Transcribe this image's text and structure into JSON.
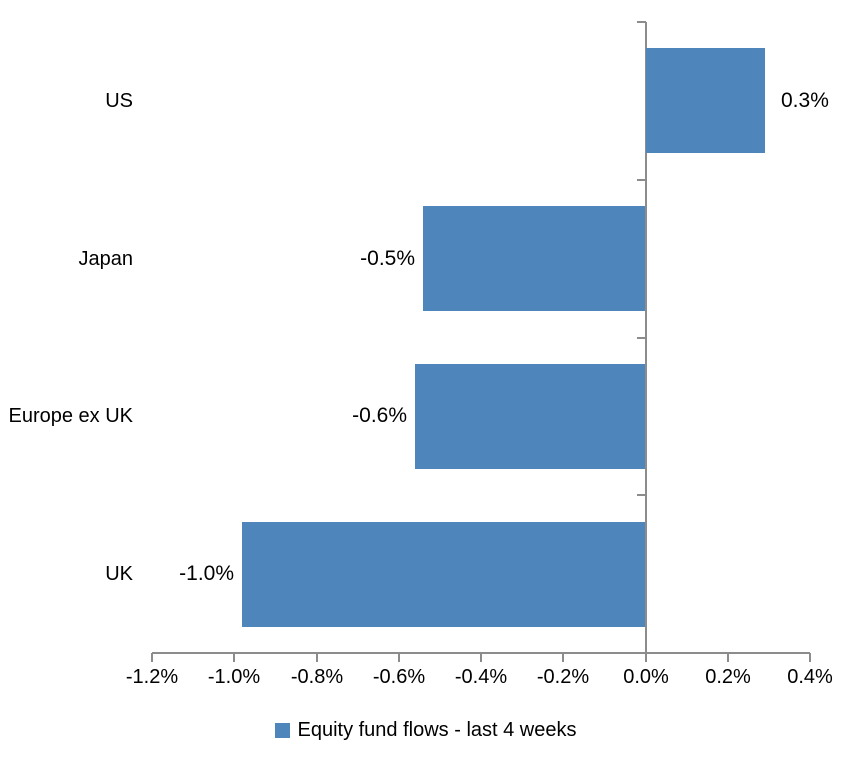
{
  "chart_data": {
    "type": "bar",
    "orientation": "horizontal",
    "title": "",
    "categories": [
      "US",
      "Japan",
      "Europe ex UK",
      "UK"
    ],
    "values": [
      0.29,
      -0.54,
      -0.56,
      -0.98
    ],
    "data_labels": [
      "0.3%",
      "-0.5%",
      "-0.6%",
      "-1.0%"
    ],
    "series_name": "Equity fund flows - last 4 weeks",
    "x_tick_labels": [
      "-1.2%",
      "-1.0%",
      "-0.8%",
      "-0.6%",
      "-0.4%",
      "-0.2%",
      "0.0%",
      "0.2%",
      "0.4%"
    ],
    "xlim": [
      -1.2,
      0.4
    ],
    "x_unit": "percent",
    "xlabel": "",
    "ylabel": "",
    "grid": "off",
    "legend_position": "bottom",
    "data_label_position": "outside-end",
    "bar_color": "#4E86BC",
    "axis_color": "#8C8C8C",
    "text_color": "#000000",
    "background_color": "#FFFFFF"
  }
}
